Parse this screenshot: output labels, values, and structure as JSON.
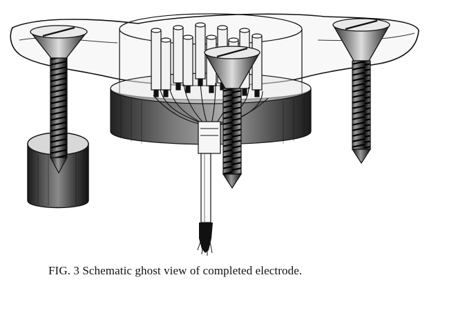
{
  "figure": {
    "caption": "FIG. 3 Schematic ghost view of completed electrode."
  },
  "chart_data": {
    "type": "diagram",
    "components": [
      "transparent-plastic-base",
      "mounting-screw-left",
      "mounting-screw-center",
      "mounting-screw-right",
      "metal-anchor-cylinder",
      "connector-block",
      "connector-pins",
      "electrode-shaft",
      "electrode-wire-tips"
    ],
    "pin_count": 10
  },
  "colors": {
    "ink": "#111111",
    "paper": "#ffffff"
  }
}
